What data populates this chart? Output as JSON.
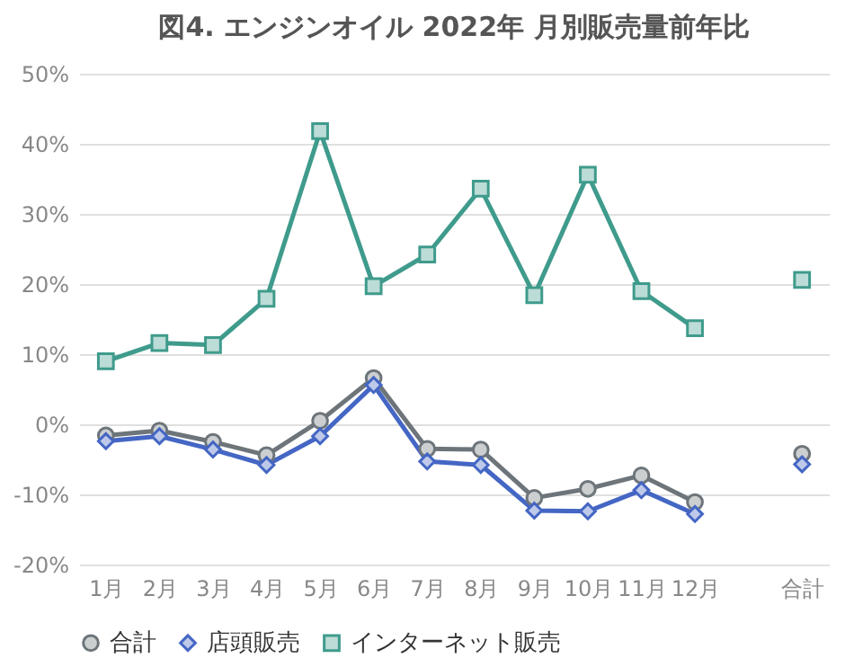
{
  "chart_data": {
    "type": "line",
    "title": "図4. エンジンオイル 2022年 月別販売量前年比",
    "categories": [
      "1月",
      "2月",
      "3月",
      "4月",
      "5月",
      "6月",
      "7月",
      "8月",
      "9月",
      "10月",
      "11月",
      "12月",
      null,
      "合計"
    ],
    "series": [
      {
        "name": "合計",
        "color": "#6d757a",
        "marker": "circle",
        "values": [
          -1.6,
          -0.9,
          -2.5,
          -4.4,
          0.5,
          6.6,
          -3.5,
          -3.6,
          -10.5,
          -9.2,
          -7.3,
          -11.1,
          null,
          -4.2
        ]
      },
      {
        "name": "店頭販売",
        "color": "#4466c4",
        "marker": "diamond",
        "values": [
          -2.4,
          -1.7,
          -3.6,
          -5.8,
          -1.7,
          5.6,
          -5.3,
          -5.8,
          -12.3,
          -12.4,
          -9.4,
          -12.8,
          null,
          -5.7
        ]
      },
      {
        "name": "インターネット販売",
        "color": "#3f9b8c",
        "marker": "square",
        "values": [
          9.0,
          11.6,
          11.3,
          17.9,
          41.8,
          19.7,
          24.2,
          33.6,
          18.4,
          35.6,
          19.0,
          13.7,
          null,
          20.6
        ]
      }
    ],
    "ylim": [
      -20,
      50
    ],
    "yticks": [
      {
        "value": -20,
        "label": "-20%"
      },
      {
        "value": -10,
        "label": "-10%"
      },
      {
        "value": 0,
        "label": "0%"
      },
      {
        "value": 10,
        "label": "10%"
      },
      {
        "value": 20,
        "label": "20%"
      },
      {
        "value": 30,
        "label": "30%"
      },
      {
        "value": 40,
        "label": "40%"
      },
      {
        "value": 50,
        "label": "50%"
      }
    ],
    "grid": "y",
    "legend": "bottom",
    "line_style": "solid"
  }
}
